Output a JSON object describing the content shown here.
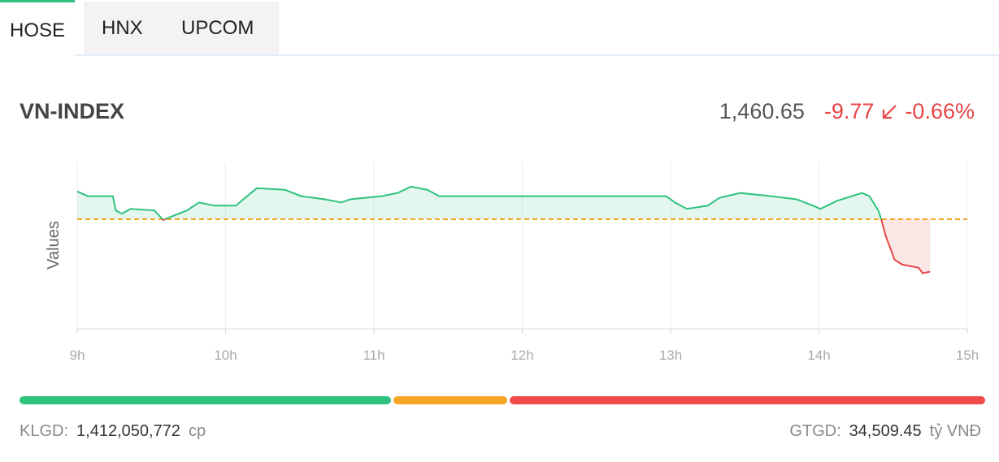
{
  "tabs": [
    "HOSE",
    "HNX",
    "UPCOM"
  ],
  "active_tab": 0,
  "index": {
    "name": "VN-INDEX",
    "value": "1,460.65",
    "change": "-9.77",
    "change_percent": "-0.66%"
  },
  "chart_data": {
    "type": "line",
    "y_label": "Values",
    "x": [
      9.0,
      9.07,
      9.24,
      9.26,
      9.3,
      9.36,
      9.52,
      9.58,
      9.63,
      9.74,
      9.82,
      9.93,
      10.07,
      10.12,
      10.21,
      10.4,
      10.51,
      10.67,
      10.78,
      10.84,
      11.05,
      11.16,
      11.25,
      11.36,
      11.44,
      12.97,
      13.03,
      13.11,
      13.25,
      13.33,
      13.47,
      13.68,
      13.85,
      13.96,
      14.01,
      14.12,
      14.29,
      14.34,
      14.4,
      14.42,
      14.45,
      14.51,
      14.56,
      14.67,
      14.7,
      14.75
    ],
    "series": [
      {
        "name": "VN-INDEX",
        "values": [
          1475.6,
          1474.71,
          1474.71,
          1472.05,
          1471.46,
          1472.34,
          1472.05,
          1470.27,
          1470.86,
          1472.05,
          1473.53,
          1472.94,
          1472.94,
          1474.12,
          1476.19,
          1475.9,
          1474.71,
          1474.12,
          1473.53,
          1474.12,
          1474.71,
          1475.3,
          1476.49,
          1475.9,
          1474.71,
          1474.71,
          1473.53,
          1472.34,
          1472.94,
          1474.41,
          1475.3,
          1474.71,
          1474.12,
          1472.94,
          1472.34,
          1473.82,
          1475.3,
          1474.71,
          1472.05,
          1470.42,
          1467.31,
          1462.87,
          1461.98,
          1461.39,
          1460.36,
          1460.65
        ]
      }
    ],
    "reference_value": 1470.42,
    "up_color": "#2ec27e",
    "down_color": "#e84545",
    "reference_color": "#f5a623",
    "xlim": [
      9,
      15
    ],
    "xticks": [
      {
        "value": 9,
        "label": "9h"
      },
      {
        "value": 10,
        "label": "10h"
      },
      {
        "value": 11,
        "label": "11h"
      },
      {
        "value": 12,
        "label": "12h"
      },
      {
        "value": 13,
        "label": "13h"
      },
      {
        "value": 14,
        "label": "14h"
      },
      {
        "value": 15,
        "label": "15h"
      }
    ],
    "ylim": [
      1450,
      1481
    ],
    "grid": true
  },
  "breadth": {
    "values": [
      38.7,
      11.8,
      49.5
    ],
    "colors": [
      "#2ec27e",
      "#f5a623",
      "#ef4b4b"
    ]
  },
  "footer": {
    "volume_label": "KLGD:",
    "volume": "1,412,050,772",
    "volume_unit": "cp",
    "value_label": "GTGD:",
    "value": "34,509.45",
    "value_unit": "tỷ VNĐ"
  }
}
